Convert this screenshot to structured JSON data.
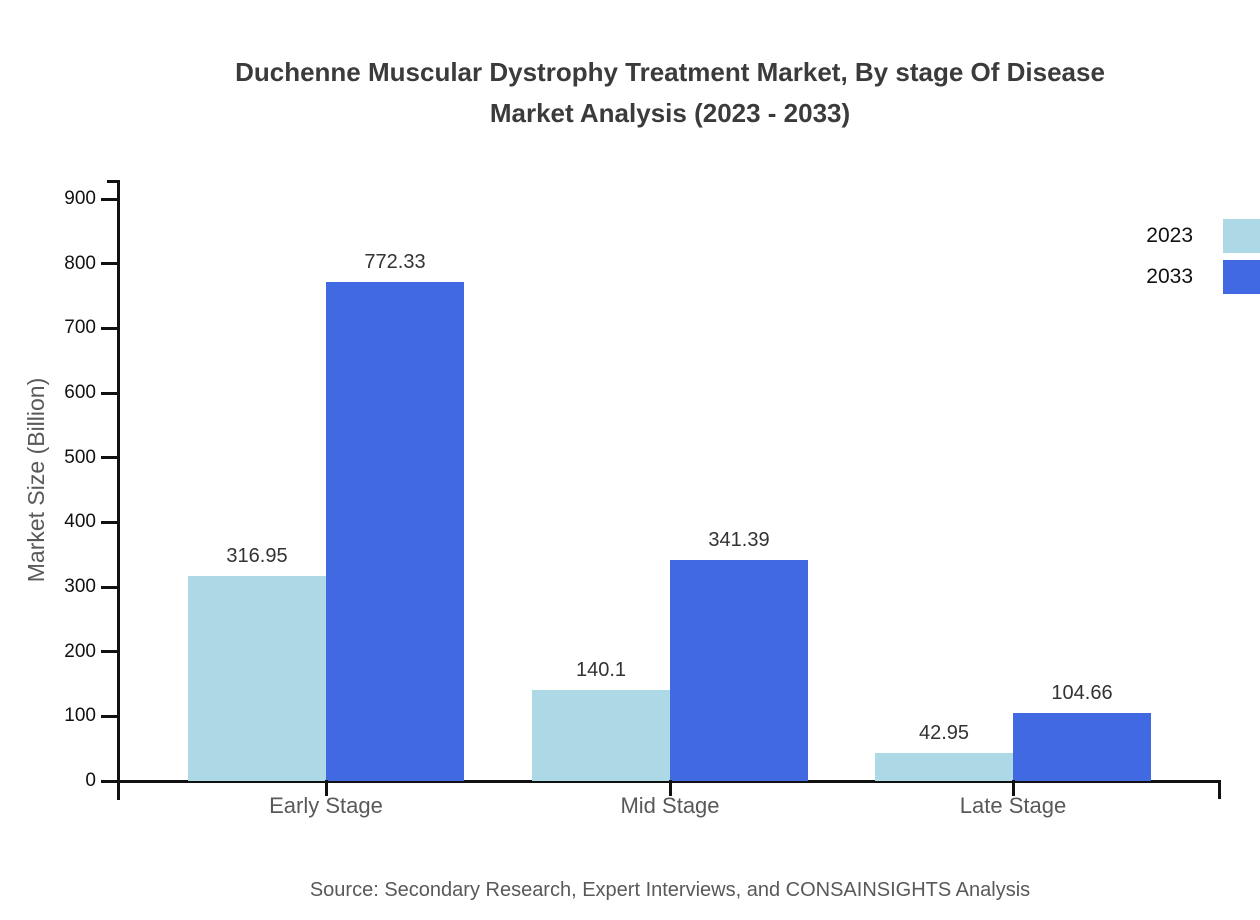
{
  "title": {
    "line1": "Duchenne Muscular Dystrophy Treatment Market, By stage Of Disease",
    "line2": "Market Analysis (2023 - 2033)"
  },
  "source": "Source: Secondary Research, Expert Interviews, and CONSAINSIGHTS Analysis",
  "chart_data": {
    "type": "bar",
    "title": "Duchenne Muscular Dystrophy Treatment Market, By stage Of Disease Market Analysis (2023 - 2033)",
    "categories": [
      "Early Stage",
      "Mid Stage",
      "Late Stage"
    ],
    "series": [
      {
        "name": "2023",
        "color": "#ADD8E6",
        "values": [
          316.95,
          140.1,
          42.95
        ]
      },
      {
        "name": "2033",
        "color": "#4169E1",
        "values": [
          772.33,
          341.39,
          104.66
        ]
      }
    ],
    "xlabel": "",
    "ylabel": "Market Size (Billion)",
    "ylim": [
      0,
      900
    ],
    "ytick_step": 100,
    "grid": false,
    "legend_position": "top-right",
    "value_labels": true
  },
  "colors": {
    "series_2023": "#ADD8E6",
    "series_2033": "#4169E1",
    "axis": "#111111",
    "title_text": "#3b3b3b",
    "muted_text": "#595959",
    "value_label_text": "#333333"
  }
}
